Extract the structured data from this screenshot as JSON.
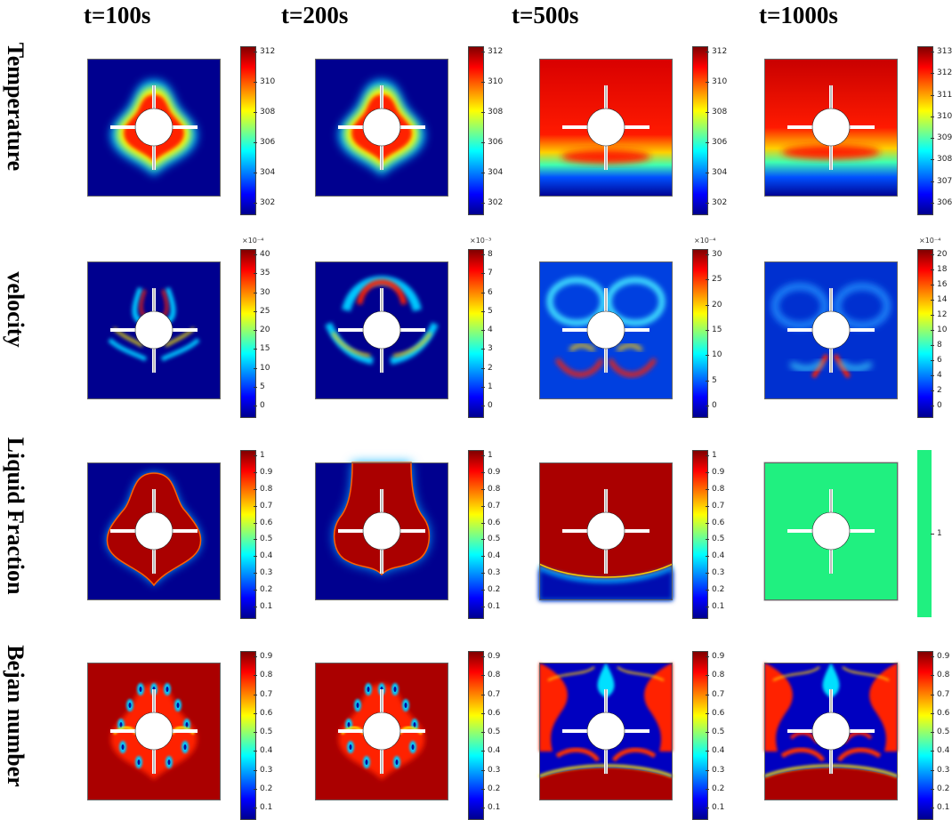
{
  "columns": [
    "t=100s",
    "t=200s",
    "t=500s",
    "t=1000s"
  ],
  "rows": [
    {
      "key": "temperature",
      "label": "Temperature"
    },
    {
      "key": "velocity",
      "label": "velocity"
    },
    {
      "key": "liquid-fraction",
      "label": "Liquid Fraction"
    },
    {
      "key": "bejan-number",
      "label": "Bejan number"
    }
  ],
  "colormap": "jet",
  "colorbars": [
    [
      {
        "ticks": [
          "312",
          "310",
          "308",
          "306",
          "304",
          "302"
        ],
        "multiplier": ""
      },
      {
        "ticks": [
          "312",
          "310",
          "308",
          "306",
          "304",
          "302"
        ],
        "multiplier": ""
      },
      {
        "ticks": [
          "312",
          "310",
          "308",
          "306",
          "304",
          "302"
        ],
        "multiplier": ""
      },
      {
        "ticks": [
          "313",
          "312",
          "311",
          "310",
          "309",
          "308",
          "307",
          "306"
        ],
        "multiplier": ""
      }
    ],
    [
      {
        "ticks": [
          "40",
          "35",
          "30",
          "25",
          "20",
          "15",
          "10",
          "5",
          "0"
        ],
        "multiplier": "×10⁻⁴"
      },
      {
        "ticks": [
          "8",
          "7",
          "6",
          "5",
          "4",
          "3",
          "2",
          "1",
          "0"
        ],
        "multiplier": "×10⁻³"
      },
      {
        "ticks": [
          "30",
          "25",
          "20",
          "15",
          "10",
          "5",
          "0"
        ],
        "multiplier": "×10⁻⁴"
      },
      {
        "ticks": [
          "20",
          "18",
          "16",
          "14",
          "12",
          "10",
          "8",
          "6",
          "4",
          "2",
          "0"
        ],
        "multiplier": "×10⁻⁴"
      }
    ],
    [
      {
        "ticks": [
          "1",
          "0.9",
          "0.8",
          "0.7",
          "0.6",
          "0.5",
          "0.4",
          "0.3",
          "0.2",
          "0.1"
        ],
        "multiplier": ""
      },
      {
        "ticks": [
          "1",
          "0.9",
          "0.8",
          "0.7",
          "0.6",
          "0.5",
          "0.4",
          "0.3",
          "0.2",
          "0.1"
        ],
        "multiplier": ""
      },
      {
        "ticks": [
          "1",
          "0.9",
          "0.8",
          "0.7",
          "0.6",
          "0.5",
          "0.4",
          "0.3",
          "0.2",
          "0.1"
        ],
        "multiplier": ""
      },
      {
        "ticks": [
          "1"
        ],
        "multiplier": ""
      }
    ],
    [
      {
        "ticks": [
          "0.9",
          "0.8",
          "0.7",
          "0.6",
          "0.5",
          "0.4",
          "0.3",
          "0.2",
          "0.1"
        ],
        "multiplier": ""
      },
      {
        "ticks": [
          "0.9",
          "0.8",
          "0.7",
          "0.6",
          "0.5",
          "0.4",
          "0.3",
          "0.2",
          "0.1"
        ],
        "multiplier": ""
      },
      {
        "ticks": [
          "0.9",
          "0.8",
          "0.7",
          "0.6",
          "0.5",
          "0.4",
          "0.3",
          "0.2",
          "0.1"
        ],
        "multiplier": ""
      },
      {
        "ticks": [
          "0.9",
          "0.8",
          "0.7",
          "0.6",
          "0.5",
          "0.4",
          "0.3",
          "0.2",
          "0.1"
        ],
        "multiplier": ""
      }
    ]
  ]
}
